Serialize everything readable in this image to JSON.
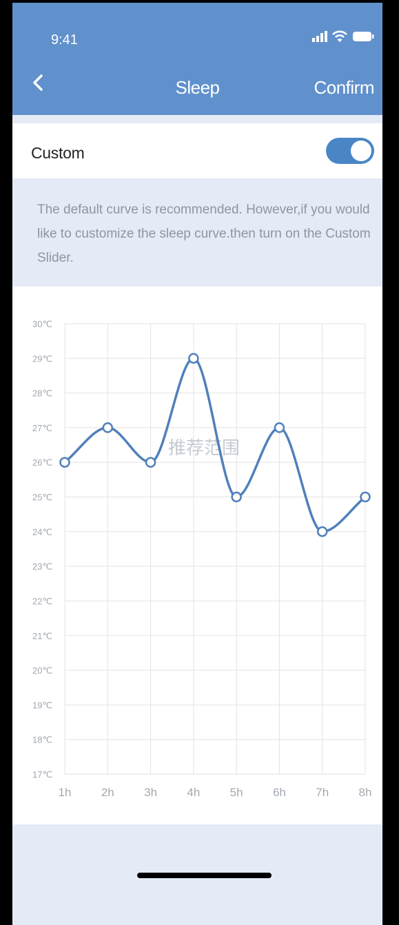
{
  "status_bar": {
    "time": "9:41"
  },
  "nav": {
    "title": "Sleep",
    "confirm_label": "Confirm"
  },
  "custom": {
    "label": "Custom",
    "enabled": true
  },
  "info": {
    "text": "The default curve is recommended. However,if you would like to customize the sleep curve.then turn on the Custom Slider."
  },
  "colors": {
    "header": "#6191cc",
    "toggle_on": "#4a86c6",
    "curve": "#5080bb",
    "panel": "#e4ebf6"
  },
  "chart_data": {
    "type": "line",
    "watermark": "推荐范围",
    "x": [
      "1h",
      "2h",
      "3h",
      "4h",
      "5h",
      "6h",
      "7h",
      "8h"
    ],
    "y_ticks": [
      "30℃",
      "29℃",
      "28℃",
      "27℃",
      "26℃",
      "25℃",
      "24℃",
      "23℃",
      "22℃",
      "21℃",
      "20℃",
      "19℃",
      "18℃",
      "17℃"
    ],
    "ylim": [
      17,
      30
    ],
    "grid": true,
    "series": [
      {
        "values": [
          26,
          27,
          26,
          29,
          25,
          27,
          24,
          25
        ]
      }
    ]
  }
}
